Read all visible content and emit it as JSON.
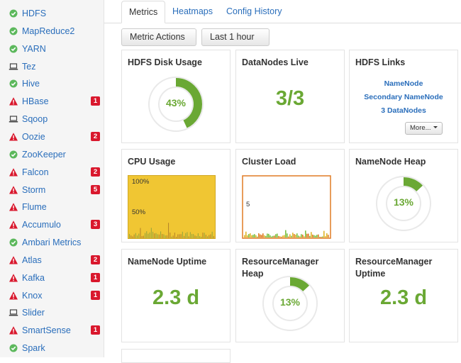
{
  "sidebar": {
    "services": [
      {
        "name": "HDFS",
        "status": "ok",
        "alerts": ""
      },
      {
        "name": "MapReduce2",
        "status": "ok",
        "alerts": ""
      },
      {
        "name": "YARN",
        "status": "ok",
        "alerts": ""
      },
      {
        "name": "Tez",
        "status": "client",
        "alerts": ""
      },
      {
        "name": "Hive",
        "status": "ok",
        "alerts": ""
      },
      {
        "name": "HBase",
        "status": "alert",
        "alerts": "1"
      },
      {
        "name": "Sqoop",
        "status": "client",
        "alerts": ""
      },
      {
        "name": "Oozie",
        "status": "alert",
        "alerts": "2"
      },
      {
        "name": "ZooKeeper",
        "status": "ok",
        "alerts": ""
      },
      {
        "name": "Falcon",
        "status": "alert",
        "alerts": "2"
      },
      {
        "name": "Storm",
        "status": "alert",
        "alerts": "5"
      },
      {
        "name": "Flume",
        "status": "alert",
        "alerts": ""
      },
      {
        "name": "Accumulo",
        "status": "alert",
        "alerts": "3"
      },
      {
        "name": "Ambari Metrics",
        "status": "ok",
        "alerts": ""
      },
      {
        "name": "Atlas",
        "status": "alert",
        "alerts": "2"
      },
      {
        "name": "Kafka",
        "status": "alert",
        "alerts": "1"
      },
      {
        "name": "Knox",
        "status": "alert",
        "alerts": "1"
      },
      {
        "name": "Slider",
        "status": "client",
        "alerts": ""
      },
      {
        "name": "SmartSense",
        "status": "alert",
        "alerts": "1"
      },
      {
        "name": "Spark",
        "status": "ok",
        "alerts": ""
      }
    ]
  },
  "tabs": [
    "Metrics",
    "Heatmaps",
    "Config History"
  ],
  "toolbar": {
    "metric_actions": "Metric Actions",
    "time_range": "Last 1 hour"
  },
  "widgets": {
    "hdfs_disk": {
      "title": "HDFS Disk Usage",
      "value": "43%",
      "fraction": 0.43
    },
    "datanodes": {
      "title": "DataNodes Live",
      "value": "3/3"
    },
    "hdfs_links": {
      "title": "HDFS Links",
      "links": [
        "NameNode",
        "Secondary NameNode",
        "3 DataNodes"
      ],
      "more": "More..."
    },
    "cpu": {
      "title": "CPU Usage",
      "label_100": "100%",
      "label_50": "50%"
    },
    "cluster_load": {
      "title": "Cluster Load",
      "label": "5"
    },
    "nn_heap": {
      "title": "NameNode Heap",
      "value": "13%",
      "fraction": 0.13
    },
    "nn_uptime": {
      "title": "NameNode Uptime",
      "value": "2.3 d"
    },
    "rm_heap": {
      "title": "ResourceManager Heap",
      "value": "13%",
      "fraction": 0.13
    },
    "rm_uptime": {
      "title": "ResourceManager Uptime",
      "value": "2.3 d"
    }
  },
  "colors": {
    "ok": "#5cb85c",
    "alert": "#d9182d",
    "accent": "#6aa834",
    "link": "#2a6ebb",
    "cpu_fill": "#f0c633"
  }
}
